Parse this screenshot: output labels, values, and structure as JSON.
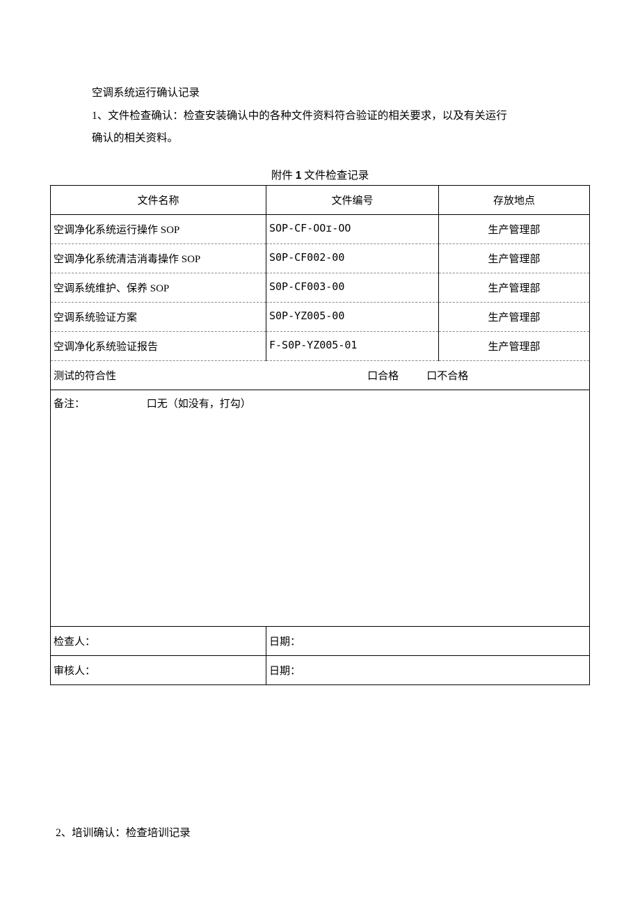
{
  "intro": {
    "title": "空调系统运行确认记录",
    "line1": "1、文件检查确认：检查安装确认中的各种文件资料符合验证的相关要求，以及有关运行",
    "line2": "确认的相关资料。"
  },
  "table": {
    "caption_prefix": "附件 ",
    "caption_num": "1",
    "caption_suffix": " 文件检查记录",
    "columns": {
      "name": "文件名称",
      "number": "文件编号",
      "location": "存放地点"
    },
    "col_widths": [
      "40%",
      "32%",
      "28%"
    ],
    "rows": [
      {
        "name": "空调净化系统运行操作 SOP",
        "number": "SOP-CF-OOɪ-OO",
        "location": "生产管理部"
      },
      {
        "name": "空调净化系统清洁消毒操作 SOP",
        "number": "S0P-CF002-00",
        "location": "生产管理部"
      },
      {
        "name": "空调系统维护、保养 SOP",
        "number": "S0P-CF003-00",
        "location": "生产管理部"
      },
      {
        "name": "空调系统验证方案",
        "number": "S0P-YZ005-00",
        "location": "生产管理部"
      },
      {
        "name": "空调净化系统验证报告",
        "number": "F-S0P-YZ005-01",
        "location": "生产管理部"
      }
    ],
    "compliance": {
      "label": "测试的符合性",
      "pass": "口合格",
      "fail": "口不合格"
    },
    "remarks": {
      "label": "备注：",
      "none": "口无（如没有，打勾）"
    },
    "sig": {
      "inspector": "检查人：",
      "reviewer": "审核人：",
      "date": "日期："
    }
  },
  "section2": "2、培训确认：检查培训记录"
}
